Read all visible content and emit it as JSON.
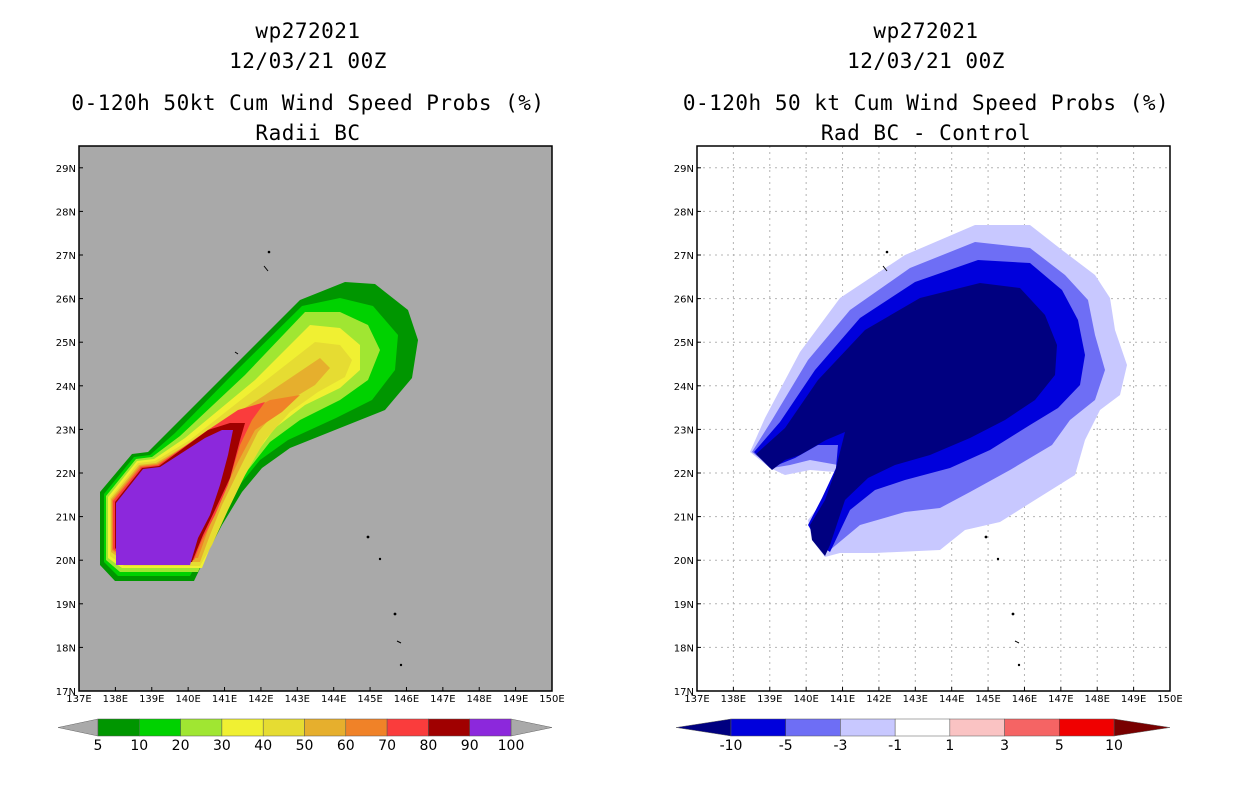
{
  "panels": [
    {
      "storm_id": "wp272021",
      "datetime": "12/03/21 00Z",
      "title": "0-120h 50kt Cum Wind Speed Probs (%)",
      "subtitle": "Radii BC"
    },
    {
      "storm_id": "wp272021",
      "datetime": "12/03/21 00Z",
      "title": "0-120h 50 kt Cum Wind Speed Probs (%)",
      "subtitle": "Rad BC - Control"
    }
  ],
  "chart_data": [
    {
      "type": "heatmap",
      "title": "0-120h 50kt Cum Wind Speed Probs (%) - Radii BC",
      "x_ticks": [
        "137E",
        "138E",
        "139E",
        "140E",
        "141E",
        "142E",
        "143E",
        "144E",
        "145E",
        "146E",
        "147E",
        "148E",
        "149E",
        "150E"
      ],
      "y_ticks": [
        "17N",
        "18N",
        "19N",
        "20N",
        "21N",
        "22N",
        "23N",
        "24N",
        "25N",
        "26N",
        "27N",
        "28N",
        "29N"
      ],
      "xlim": [
        137,
        150
      ],
      "ylim": [
        17,
        29.5
      ],
      "grid": false,
      "background": "#a9a9a9",
      "colorbar": {
        "labels": [
          "5",
          "10",
          "20",
          "30",
          "40",
          "50",
          "60",
          "70",
          "80",
          "90",
          "100"
        ],
        "colors": [
          "#009600",
          "#00d200",
          "#a0e632",
          "#f0f032",
          "#e6dc32",
          "#e6af2d",
          "#f08228",
          "#fa3c3c",
          "#a00000",
          "#8c28dc"
        ],
        "under": "#a9a9a9",
        "over": "#a9a9a9"
      }
    },
    {
      "type": "heatmap",
      "title": "0-120h 50 kt Cum Wind Speed Probs (%) - Rad BC - Control",
      "x_ticks": [
        "137E",
        "138E",
        "139E",
        "140E",
        "141E",
        "142E",
        "143E",
        "144E",
        "145E",
        "146E",
        "147E",
        "148E",
        "149E",
        "150E"
      ],
      "y_ticks": [
        "17N",
        "18N",
        "19N",
        "20N",
        "21N",
        "22N",
        "23N",
        "24N",
        "25N",
        "26N",
        "27N",
        "28N",
        "29N"
      ],
      "xlim": [
        137,
        150
      ],
      "ylim": [
        17,
        29.5
      ],
      "grid": true,
      "background": "#ffffff",
      "colorbar": {
        "labels": [
          "-10",
          "-5",
          "-3",
          "-1",
          "1",
          "3",
          "5",
          "10"
        ],
        "colors": [
          "#0000dc",
          "#6e6ef5",
          "#c8c8ff",
          "#ffffff",
          "#fac3c3",
          "#f56464",
          "#f00000"
        ],
        "under": "#000080",
        "over": "#780000"
      }
    }
  ]
}
